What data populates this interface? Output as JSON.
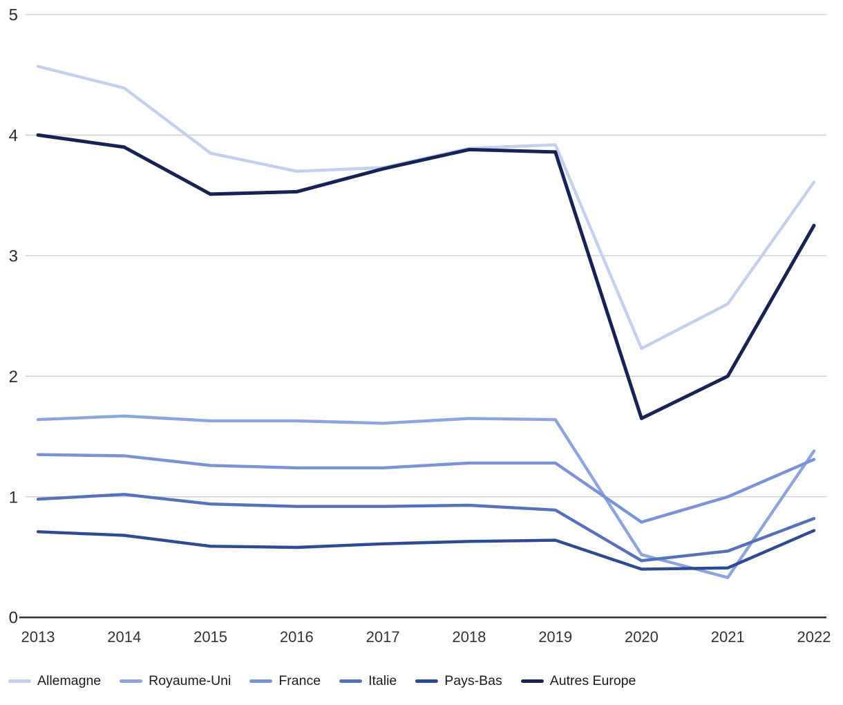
{
  "chart_data": {
    "type": "line",
    "title": "",
    "xlabel": "",
    "ylabel": "",
    "x": [
      "2013",
      "2014",
      "2015",
      "2016",
      "2017",
      "2018",
      "2019",
      "2020",
      "2021",
      "2022"
    ],
    "yticks": [
      0,
      1,
      2,
      3,
      4,
      5
    ],
    "ylim": [
      0,
      5
    ],
    "grid": "horizontal",
    "gridline_color": "#cccccc",
    "axis_line_color": "#2e2e2e",
    "legend_position": "bottom",
    "series": [
      {
        "name": "Allemagne",
        "color": "#c5cfee",
        "values": [
          4.57,
          4.39,
          3.85,
          3.7,
          3.73,
          3.89,
          3.92,
          2.23,
          2.6,
          3.61
        ]
      },
      {
        "name": "Royaume-Uni",
        "color": "#8ea4de",
        "values": [
          1.64,
          1.67,
          1.63,
          1.63,
          1.61,
          1.65,
          1.64,
          0.52,
          0.33,
          1.38
        ]
      },
      {
        "name": "France",
        "color": "#7b93d6",
        "values": [
          1.35,
          1.34,
          1.26,
          1.24,
          1.24,
          1.28,
          1.28,
          0.79,
          1.0,
          1.31
        ]
      },
      {
        "name": "Italie",
        "color": "#5571ba",
        "values": [
          0.98,
          1.02,
          0.94,
          0.92,
          0.92,
          0.93,
          0.89,
          0.47,
          0.55,
          0.82
        ]
      },
      {
        "name": "Pays-Bas",
        "color": "#2d4a92",
        "values": [
          0.71,
          0.68,
          0.59,
          0.58,
          0.61,
          0.63,
          0.64,
          0.4,
          0.41,
          0.72
        ]
      },
      {
        "name": "Autres Europe",
        "color": "#172355",
        "values": [
          4.0,
          3.9,
          3.51,
          3.53,
          3.72,
          3.88,
          3.86,
          1.65,
          2.0,
          3.25
        ]
      }
    ]
  }
}
